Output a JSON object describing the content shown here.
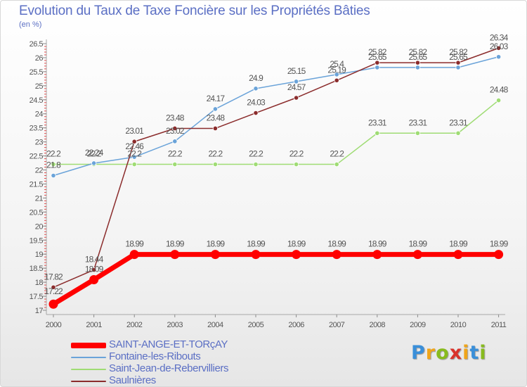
{
  "title": "Evolution du Taux de Taxe Foncière sur les Propriétés Bâties",
  "unit_label": "(en %)",
  "logo": {
    "letters": [
      "P",
      "r",
      "o",
      "x",
      "i",
      "t",
      "i"
    ],
    "colors": [
      "#3a8fd9",
      "#f0a51a",
      "#88bb1e",
      "#d9332b",
      "#f0a51a",
      "#3a8fd9",
      "#88bb1e"
    ]
  },
  "chart_data": {
    "type": "line",
    "x": [
      "2000",
      "2001",
      "2002",
      "2003",
      "2004",
      "2005",
      "2006",
      "2007",
      "2008",
      "2009",
      "2010",
      "2011"
    ],
    "ylim": [
      17,
      26.5
    ],
    "yticks": [
      "17",
      "17.5",
      "18",
      "18.5",
      "19",
      "19.5",
      "20",
      "20.5",
      "21",
      "21.5",
      "22",
      "22.5",
      "23",
      "23.5",
      "24",
      "24.5",
      "25",
      "25.5",
      "26",
      "26.5"
    ],
    "grid": false,
    "legend_position": "bottom-left",
    "series": [
      {
        "name": "SAINT-ANGE-ET-TORçAY",
        "color": "#ff0000",
        "values": [
          17.22,
          18.09,
          18.99,
          18.99,
          18.99,
          18.99,
          18.99,
          18.99,
          18.99,
          18.99,
          18.99,
          18.99
        ],
        "labels": [
          "17.22",
          "18.09",
          "18.99",
          "18.99",
          "18.99",
          "18.99",
          "18.99",
          "18.99",
          "18.99",
          "18.99",
          "18.99",
          "18.99"
        ]
      },
      {
        "name": "Fontaine-les-Ribouts",
        "color": "#6aa3d9",
        "values": [
          21.8,
          22.24,
          22.46,
          23.02,
          24.17,
          24.9,
          25.15,
          25.4,
          25.65,
          25.65,
          25.65,
          26.03
        ],
        "labels": [
          "21.8",
          "22.24",
          "22.46",
          "23.02",
          "24.17",
          "24.9",
          "25.15",
          "25.4",
          "25.65",
          "25.65",
          "25.65",
          "26.03"
        ]
      },
      {
        "name": "Saint-Jean-de-Rebervilliers",
        "color": "#9fdc74",
        "values": [
          22.2,
          22.2,
          22.2,
          22.2,
          22.2,
          22.2,
          22.2,
          22.2,
          23.31,
          23.31,
          23.31,
          24.48
        ],
        "labels": [
          "22.2",
          "22.2",
          "22.2",
          "22.2",
          "22.2",
          "22.2",
          "22.2",
          "22.2",
          "23.31",
          "23.31",
          "23.31",
          "24.48"
        ]
      },
      {
        "name": "Saulnières",
        "color": "#8b2c2c",
        "values": [
          17.82,
          18.44,
          23.01,
          23.48,
          23.48,
          24.03,
          24.57,
          25.19,
          25.82,
          25.82,
          25.82,
          26.34
        ],
        "labels": [
          "17.82",
          "18.44",
          "23.01",
          "23.48",
          "23.48",
          "24.03",
          "24.57",
          "25.19",
          "25.82",
          "25.82",
          "25.82",
          "26.34"
        ]
      }
    ]
  }
}
